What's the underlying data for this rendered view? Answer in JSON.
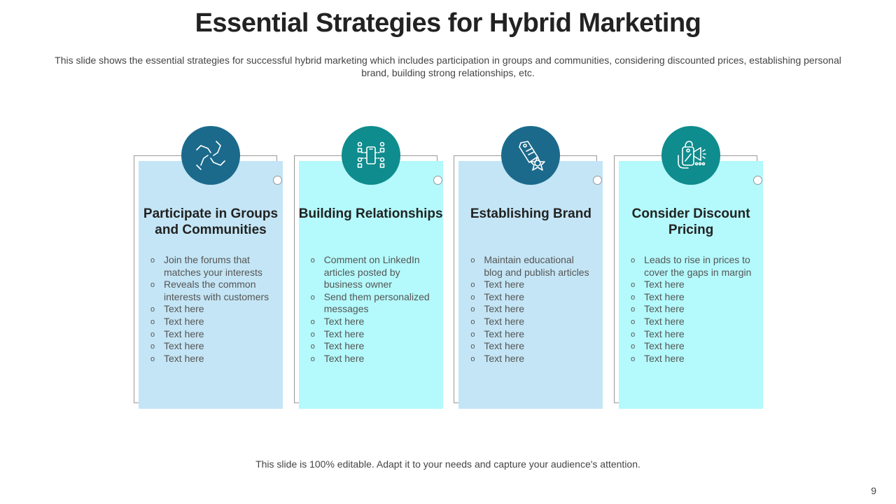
{
  "title": "Essential Strategies for Hybrid Marketing",
  "subtitle": "This slide shows the essential strategies for successful hybrid marketing which includes participation in groups and communities, considering discounted prices, establishing personal brand, building strong relationships, etc.",
  "colors": {
    "dark_blue": "#1b6a8c",
    "teal": "#0f8c8d",
    "light_blue": "#c4e5f5",
    "light_cyan": "#b4f9fb"
  },
  "cards": [
    {
      "icon": "hands-together-icon",
      "title": "Participate in Groups and Communities",
      "bullets": [
        "Join the forums that matches your interests",
        "Reveals the common interests with customers",
        "Text here",
        "Text here",
        "Text here",
        "Text here",
        "Text here"
      ]
    },
    {
      "icon": "mobile-network-icon",
      "title": "Building Relationships",
      "bullets": [
        "Comment on LinkedIn articles posted by business owner",
        "Send them personalized messages",
        "Text here",
        "Text here",
        "Text here",
        "Text here"
      ]
    },
    {
      "icon": "price-tag-star-icon",
      "title": "Establishing Brand",
      "bullets": [
        "Maintain educational blog and publish articles",
        "Text here",
        "Text here",
        "Text here",
        "Text here",
        "Text here",
        "Text here",
        "Text here"
      ]
    },
    {
      "icon": "discount-megaphone-icon",
      "title": "Consider Discount Pricing",
      "bullets": [
        "Leads to rise in prices to cover the gaps in margin",
        "Text here",
        "Text here",
        "Text here",
        "Text here",
        "Text here",
        "Text here",
        "Text here"
      ]
    }
  ],
  "footer": "This slide is 100% editable. Adapt it to your needs and capture your audience's attention.",
  "page_number": "9"
}
